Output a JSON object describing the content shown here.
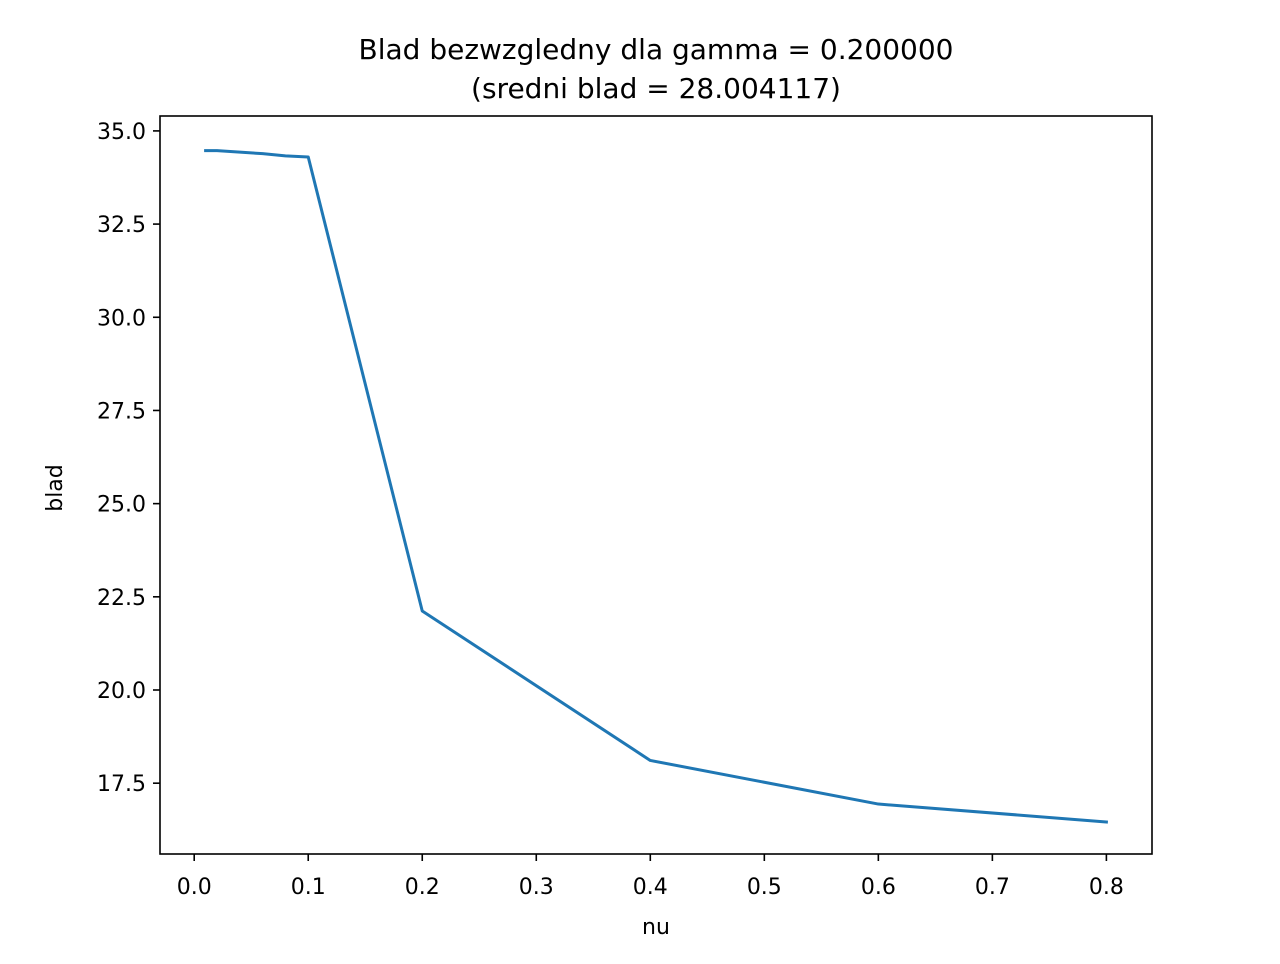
{
  "chart_data": {
    "type": "line",
    "title": "Blad bezwzgledny dla gamma = 0.200000",
    "subtitle": "(sredni blad = 28.004117)",
    "xlabel": "nu",
    "ylabel": "blad",
    "xlim": [
      -0.03,
      0.84
    ],
    "ylim": [
      15.6,
      35.4
    ],
    "x_ticks": [
      0.0,
      0.1,
      0.2,
      0.3,
      0.4,
      0.5,
      0.6,
      0.7,
      0.8
    ],
    "x_tick_labels": [
      "0.0",
      "0.1",
      "0.2",
      "0.3",
      "0.4",
      "0.5",
      "0.6",
      "0.7",
      "0.8"
    ],
    "y_ticks": [
      17.5,
      20.0,
      22.5,
      25.0,
      27.5,
      30.0,
      32.5,
      35.0
    ],
    "y_tick_labels": [
      "17.5",
      "20.0",
      "22.5",
      "25.0",
      "27.5",
      "30.0",
      "32.5",
      "35.0"
    ],
    "grid": false,
    "series": [
      {
        "color": "#1f77b4",
        "x": [
          0.01,
          0.02,
          0.04,
          0.06,
          0.08,
          0.1,
          0.2,
          0.4,
          0.6,
          0.8
        ],
        "y": [
          34.47,
          34.47,
          34.43,
          34.39,
          34.33,
          34.3,
          22.12,
          18.11,
          16.94,
          16.46
        ]
      }
    ]
  }
}
